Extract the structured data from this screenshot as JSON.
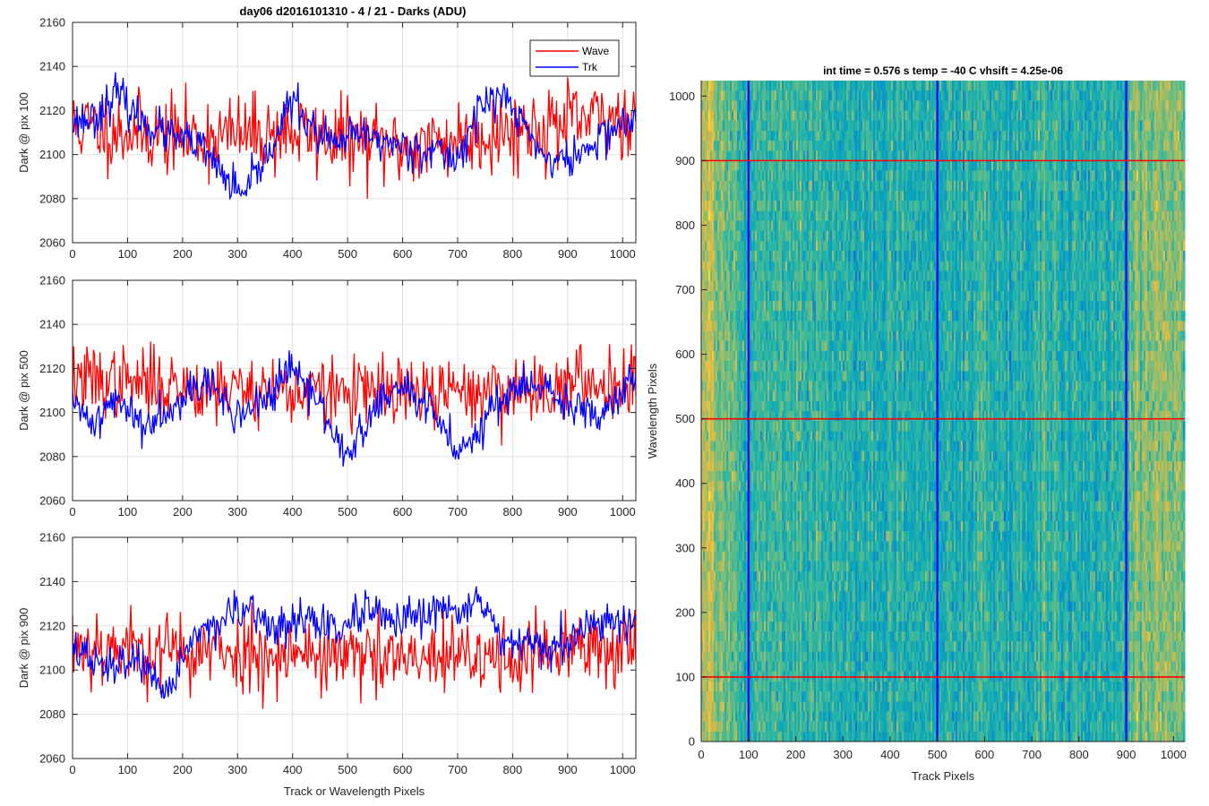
{
  "figure_title": "day06 d2016101310 - 4 / 21 - Darks (ADU)",
  "chart_data": [
    {
      "type": "line",
      "ylabel": "Dark @ pix 100",
      "xlabel": "",
      "xlim": [
        0,
        1024
      ],
      "ylim": [
        2060,
        2160
      ],
      "xticks": [
        0,
        100,
        200,
        300,
        400,
        500,
        600,
        700,
        800,
        900,
        1000
      ],
      "yticks": [
        2060,
        2080,
        2100,
        2120,
        2140,
        2160
      ],
      "grid": true,
      "legend": "top-right",
      "series": [
        {
          "name": "Wave",
          "color": "#ff0000",
          "noise": 9,
          "seed": 11,
          "trend_x": [
            0,
            200,
            400,
            600,
            800,
            1024
          ],
          "trend_y": [
            2113,
            2108,
            2110,
            2103,
            2111,
            2118
          ]
        },
        {
          "name": "Trk",
          "color": "#0000ff",
          "noise": 4.5,
          "seed": 23,
          "trend_x": [
            0,
            40,
            80,
            120,
            180,
            230,
            270,
            310,
            350,
            400,
            440,
            480,
            520,
            560,
            600,
            650,
            700,
            740,
            780,
            820,
            860,
            900,
            940,
            980,
            1024
          ],
          "trend_y": [
            2115,
            2117,
            2128,
            2116,
            2108,
            2104,
            2092,
            2080,
            2098,
            2125,
            2110,
            2104,
            2110,
            2106,
            2104,
            2102,
            2098,
            2122,
            2127,
            2114,
            2098,
            2097,
            2103,
            2112,
            2115
          ]
        }
      ]
    },
    {
      "type": "line",
      "ylabel": "Dark @ pix 500",
      "xlabel": "",
      "xlim": [
        0,
        1024
      ],
      "ylim": [
        2060,
        2160
      ],
      "xticks": [
        0,
        100,
        200,
        300,
        400,
        500,
        600,
        700,
        800,
        900,
        1000
      ],
      "yticks": [
        2060,
        2080,
        2100,
        2120,
        2140,
        2160
      ],
      "grid": true,
      "series": [
        {
          "name": "Wave",
          "color": "#ff0000",
          "noise": 8,
          "seed": 37,
          "trend_x": [
            0,
            200,
            400,
            600,
            800,
            1024
          ],
          "trend_y": [
            2115,
            2112,
            2110,
            2108,
            2110,
            2115
          ]
        },
        {
          "name": "Trk",
          "color": "#0000ff",
          "noise": 4.5,
          "seed": 41,
          "trend_x": [
            0,
            40,
            80,
            130,
            180,
            240,
            300,
            360,
            400,
            450,
            500,
            560,
            600,
            660,
            700,
            740,
            800,
            860,
            900,
            950,
            1024
          ],
          "trend_y": [
            2103,
            2096,
            2106,
            2094,
            2104,
            2115,
            2098,
            2108,
            2120,
            2103,
            2080,
            2105,
            2112,
            2098,
            2082,
            2094,
            2112,
            2110,
            2103,
            2098,
            2118
          ]
        }
      ]
    },
    {
      "type": "line",
      "ylabel": "Dark @ pix 900",
      "xlabel": "Track or Wavelength Pixels",
      "xlim": [
        0,
        1024
      ],
      "ylim": [
        2060,
        2160
      ],
      "xticks": [
        0,
        100,
        200,
        300,
        400,
        500,
        600,
        700,
        800,
        900,
        1000
      ],
      "yticks": [
        2060,
        2080,
        2100,
        2120,
        2140,
        2160
      ],
      "grid": true,
      "series": [
        {
          "name": "Wave",
          "color": "#ff0000",
          "noise": 9,
          "seed": 53,
          "trend_x": [
            0,
            200,
            400,
            600,
            800,
            1024
          ],
          "trend_y": [
            2112,
            2108,
            2108,
            2104,
            2106,
            2112
          ]
        },
        {
          "name": "Trk",
          "color": "#0000ff",
          "noise": 4.5,
          "seed": 67,
          "trend_x": [
            0,
            60,
            120,
            165,
            210,
            260,
            320,
            380,
            420,
            480,
            540,
            600,
            660,
            700,
            740,
            780,
            840,
            900,
            960,
            1024
          ],
          "trend_y": [
            2110,
            2100,
            2106,
            2085,
            2112,
            2122,
            2126,
            2118,
            2124,
            2118,
            2126,
            2120,
            2126,
            2128,
            2132,
            2112,
            2110,
            2112,
            2122,
            2124
          ]
        }
      ]
    },
    {
      "type": "heatmap",
      "title": "int time = 0.576 s   temp = -40 C   vhsift = 4.25e-06",
      "xlabel": "Track Pixels",
      "ylabel": "Wavelength Pixels",
      "xlim": [
        0,
        1024
      ],
      "ylim": [
        0,
        1024
      ],
      "xticks": [
        0,
        100,
        200,
        300,
        400,
        500,
        600,
        700,
        800,
        900,
        1000
      ],
      "yticks": [
        0,
        100,
        200,
        300,
        400,
        500,
        600,
        700,
        800,
        900,
        1000
      ],
      "colormap": "parula",
      "vertical_lines": [
        100,
        500,
        900
      ],
      "vertical_line_color": "#0000ff",
      "horizontal_lines": [
        100,
        500,
        900
      ],
      "horizontal_line_color": "#ff0000",
      "column_profile_x": [
        0,
        20,
        60,
        100,
        150,
        220,
        300,
        400,
        480,
        520,
        600,
        700,
        800,
        880,
        920,
        960,
        1000,
        1024
      ],
      "column_profile_v": [
        0.62,
        0.7,
        0.52,
        0.48,
        0.5,
        0.5,
        0.46,
        0.46,
        0.44,
        0.44,
        0.46,
        0.45,
        0.47,
        0.44,
        0.6,
        0.66,
        0.62,
        0.56
      ]
    }
  ]
}
